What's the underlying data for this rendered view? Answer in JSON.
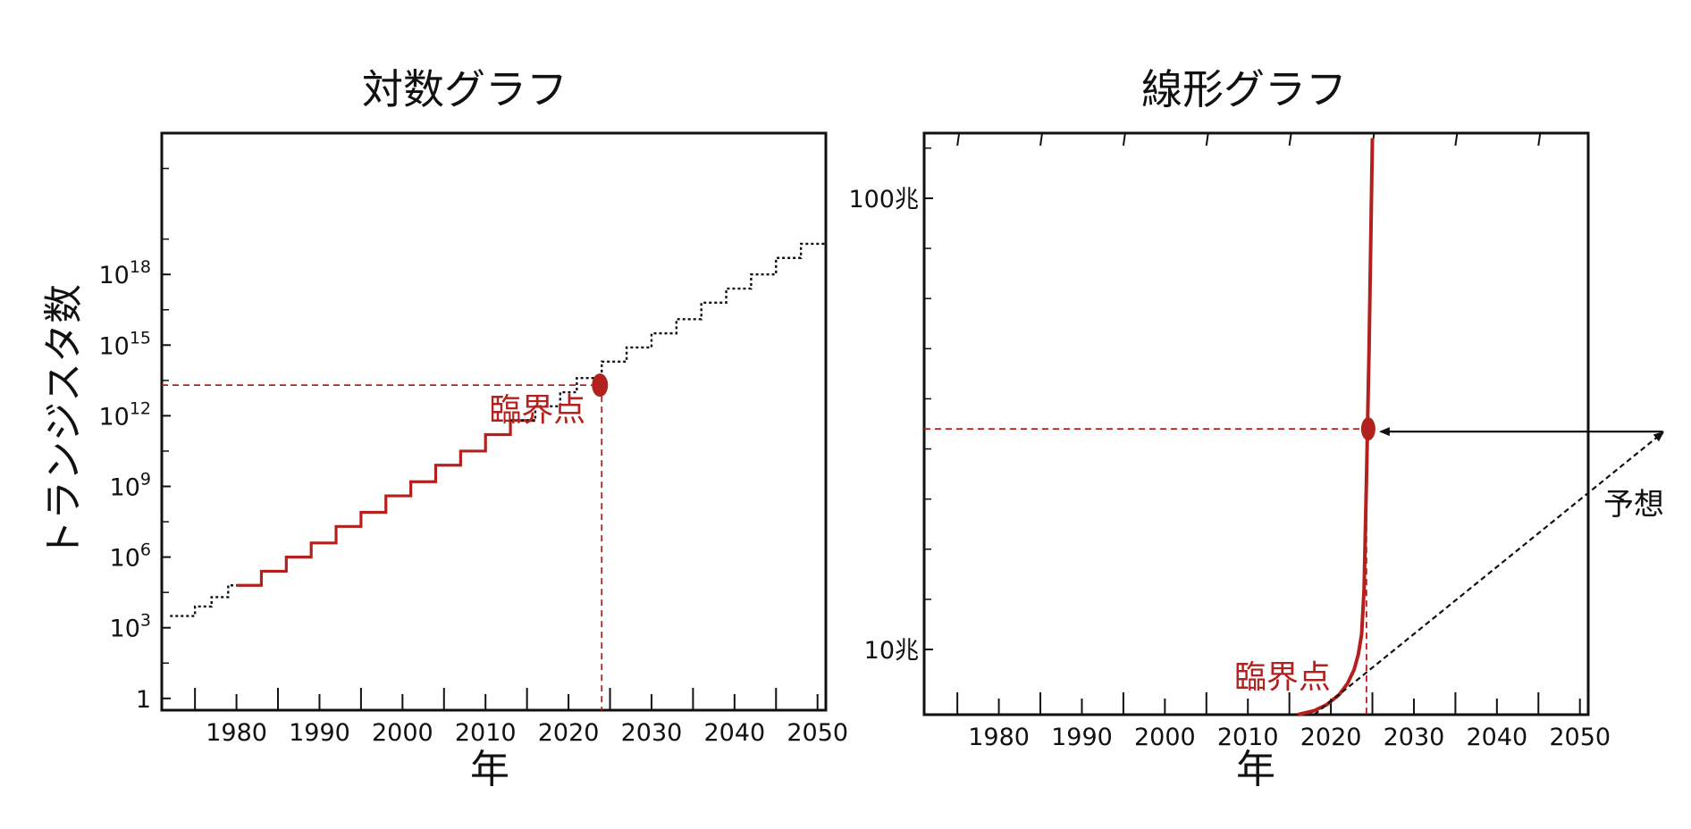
{
  "chart_data": [
    {
      "type": "line",
      "title": "対数グラフ",
      "xlabel": "年",
      "ylabel": "トランジスタ数",
      "scale_y": "log10",
      "xlim": [
        1971,
        2051
      ],
      "ylim_exponent": [
        -0.5,
        24
      ],
      "x_ticks": [
        "1980",
        "1990",
        "2000",
        "2010",
        "2020",
        "2030",
        "2040",
        "2050"
      ],
      "y_ticks": [
        {
          "base": "1",
          "exp": ""
        },
        {
          "base": "10",
          "exp": "3"
        },
        {
          "base": "10",
          "exp": "6"
        },
        {
          "base": "10",
          "exp": "9"
        },
        {
          "base": "10",
          "exp": "12"
        },
        {
          "base": "10",
          "exp": "15"
        },
        {
          "base": "10",
          "exp": "18"
        }
      ],
      "series": [
        {
          "style": "solid",
          "color": "#b3211e",
          "x": [
            1980,
            1983,
            1983,
            1986,
            1986,
            1989,
            1989,
            1992,
            1992,
            1995,
            1995,
            1998,
            1998,
            2001,
            2001,
            2004,
            2004,
            2007,
            2007,
            2010,
            2010,
            2013,
            2013,
            2016
          ],
          "y_exponent": [
            4.8,
            4.8,
            5.4,
            5.4,
            6.0,
            6.0,
            6.6,
            6.6,
            7.3,
            7.3,
            7.9,
            7.9,
            8.6,
            8.6,
            9.2,
            9.2,
            9.9,
            9.9,
            10.5,
            10.5,
            11.2,
            11.2,
            11.8,
            11.8
          ]
        },
        {
          "style": "dotted",
          "color": "#111111",
          "x": [
            1972,
            1975,
            1975,
            1977,
            1977,
            1979,
            1979,
            1980
          ],
          "y_exponent": [
            3.5,
            3.5,
            3.9,
            3.9,
            4.3,
            4.3,
            4.8,
            4.8
          ]
        },
        {
          "style": "dotted",
          "color": "#111111",
          "x": [
            2013,
            2016,
            2016,
            2019,
            2019,
            2021,
            2021,
            2024,
            2024,
            2027,
            2027,
            2030,
            2030,
            2033,
            2033,
            2036,
            2036,
            2039,
            2039,
            2042,
            2042,
            2045,
            2045,
            2048,
            2048,
            2051
          ],
          "y_exponent": [
            11.8,
            11.8,
            12.4,
            12.4,
            13.0,
            13.0,
            13.6,
            13.6,
            14.3,
            14.3,
            14.9,
            14.9,
            15.5,
            15.5,
            16.1,
            16.1,
            16.8,
            16.8,
            17.4,
            17.4,
            18.0,
            18.0,
            18.7,
            18.7,
            19.3,
            19.3
          ]
        }
      ],
      "critical_point": {
        "label": "臨界点",
        "x": 2024,
        "y_exponent": 13.3
      }
    },
    {
      "type": "line",
      "title": "線形グラフ",
      "xlabel": "年",
      "scale_y": "linear",
      "xlim": [
        1971,
        2051
      ],
      "ylim": [
        -3,
        113
      ],
      "x_ticks": [
        "1980",
        "1990",
        "2000",
        "2010",
        "2020",
        "2030",
        "2040",
        "2050"
      ],
      "y_ticks": [
        {
          "label": "10兆",
          "value": 10
        },
        {
          "label": "100兆",
          "value": 100
        }
      ],
      "series": [
        {
          "style": "solid",
          "color": "#b3211e",
          "x": [
            2016,
            2018,
            2019.5,
            2021,
            2022,
            2022.8,
            2023.3,
            2023.7,
            2024,
            2024.3,
            2024.6,
            2025
          ],
          "y": [
            -3,
            -2.2,
            -1.0,
            1.0,
            3.2,
            6.0,
            9.0,
            13.0,
            22.0,
            45.0,
            70.0,
            112.0
          ]
        }
      ],
      "critical_point": {
        "label": "臨界点",
        "x": 2024.5,
        "y": 54
      },
      "forecast": {
        "label": "予想",
        "start": {
          "x": 2018,
          "y": -3
        },
        "end": {
          "x": 2060,
          "y": 54
        }
      }
    }
  ]
}
